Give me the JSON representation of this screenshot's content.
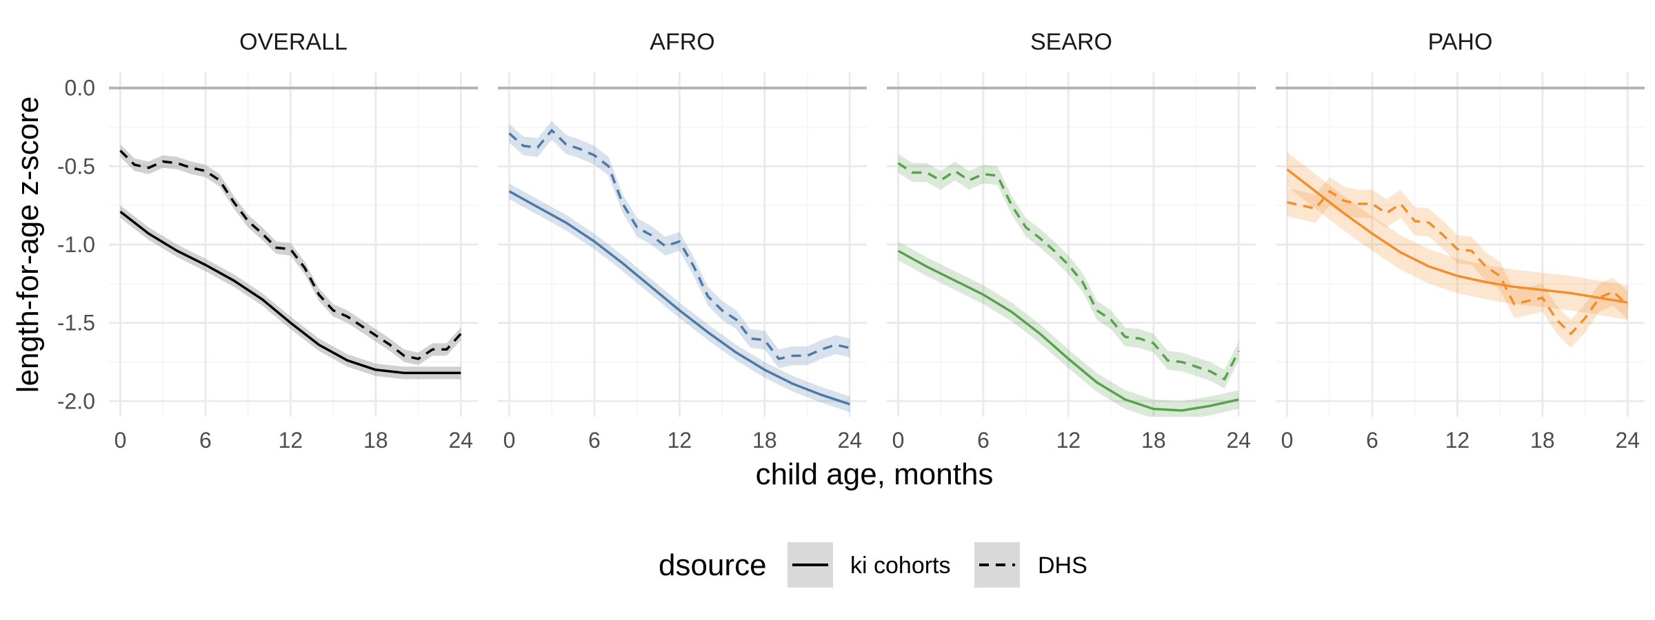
{
  "chart_data": {
    "type": "line",
    "xlabel": "child age, months",
    "ylabel": "length-for-age z-score",
    "xlim": [
      -0.8,
      25.2
    ],
    "ylim": [
      -2.1,
      0.1
    ],
    "x_ticks": [
      0,
      6,
      12,
      18,
      24
    ],
    "y_ticks": [
      0.0,
      -0.5,
      -1.0,
      -1.5,
      -2.0
    ],
    "y_tick_labels": [
      "0.0",
      "-0.5",
      "-1.0",
      "-1.5",
      "-2.0"
    ],
    "reference_line": 0,
    "grid": true,
    "legend": {
      "title": "dsource",
      "position": "bottom",
      "entries": [
        {
          "label": "ki cohorts",
          "linetype": "solid"
        },
        {
          "label": "DHS",
          "linetype": "dashed"
        }
      ]
    },
    "panels": [
      {
        "title": "OVERALL",
        "color": "#000000",
        "band_color": "#999999",
        "series": [
          {
            "name": "ki cohorts",
            "linetype": "solid",
            "x": [
              0,
              2,
              4,
              6,
              8,
              10,
              12,
              14,
              16,
              18,
              20,
              22,
              24
            ],
            "y": [
              -0.79,
              -0.93,
              -1.04,
              -1.13,
              -1.23,
              -1.35,
              -1.5,
              -1.64,
              -1.74,
              -1.8,
              -1.82,
              -1.82,
              -1.82
            ],
            "band": 0.04
          },
          {
            "name": "DHS",
            "linetype": "dashed",
            "x": [
              0,
              1,
              2,
              3,
              4,
              5,
              6,
              7,
              8,
              9,
              10,
              11,
              12,
              13,
              14,
              15,
              16,
              17,
              18,
              19,
              20,
              21,
              22,
              23,
              24
            ],
            "y": [
              -0.4,
              -0.49,
              -0.51,
              -0.47,
              -0.48,
              -0.51,
              -0.53,
              -0.59,
              -0.73,
              -0.85,
              -0.93,
              -1.02,
              -1.03,
              -1.15,
              -1.32,
              -1.42,
              -1.46,
              -1.52,
              -1.58,
              -1.64,
              -1.71,
              -1.73,
              -1.67,
              -1.67,
              -1.57
            ],
            "band": 0.04
          }
        ]
      },
      {
        "title": "AFRO",
        "color": "#4e79a7",
        "band_color": "#4e79a7",
        "series": [
          {
            "name": "ki cohorts",
            "linetype": "solid",
            "x": [
              0,
              2,
              4,
              6,
              8,
              10,
              12,
              14,
              16,
              18,
              20,
              22,
              24
            ],
            "y": [
              -0.66,
              -0.76,
              -0.86,
              -0.98,
              -1.12,
              -1.27,
              -1.42,
              -1.56,
              -1.69,
              -1.8,
              -1.89,
              -1.96,
              -2.02
            ],
            "band": 0.05
          },
          {
            "name": "DHS",
            "linetype": "dashed",
            "x": [
              0,
              1,
              2,
              3,
              4,
              5,
              6,
              7,
              8,
              9,
              10,
              11,
              12,
              13,
              14,
              15,
              16,
              17,
              18,
              19,
              20,
              21,
              22,
              23,
              24
            ],
            "y": [
              -0.29,
              -0.37,
              -0.38,
              -0.27,
              -0.36,
              -0.39,
              -0.43,
              -0.5,
              -0.74,
              -0.89,
              -0.94,
              -1.01,
              -0.98,
              -1.14,
              -1.33,
              -1.42,
              -1.48,
              -1.6,
              -1.61,
              -1.73,
              -1.71,
              -1.71,
              -1.67,
              -1.64,
              -1.66
            ],
            "band": 0.06
          }
        ]
      },
      {
        "title": "SEARO",
        "color": "#59a14f",
        "band_color": "#59a14f",
        "series": [
          {
            "name": "ki cohorts",
            "linetype": "solid",
            "x": [
              0,
              2,
              4,
              6,
              8,
              10,
              12,
              14,
              16,
              18,
              20,
              22,
              24
            ],
            "y": [
              -1.04,
              -1.14,
              -1.23,
              -1.32,
              -1.43,
              -1.57,
              -1.73,
              -1.88,
              -1.99,
              -2.05,
              -2.06,
              -2.03,
              -1.99
            ],
            "band": 0.06
          },
          {
            "name": "DHS",
            "linetype": "dashed",
            "x": [
              0,
              1,
              2,
              3,
              4,
              5,
              6,
              7,
              8,
              9,
              10,
              11,
              12,
              13,
              14,
              15,
              16,
              17,
              18,
              19,
              20,
              21,
              22,
              23,
              24
            ],
            "y": [
              -0.48,
              -0.54,
              -0.54,
              -0.59,
              -0.53,
              -0.59,
              -0.55,
              -0.56,
              -0.75,
              -0.89,
              -0.96,
              -1.04,
              -1.13,
              -1.24,
              -1.42,
              -1.48,
              -1.59,
              -1.6,
              -1.63,
              -1.74,
              -1.75,
              -1.78,
              -1.81,
              -1.86,
              -1.68
            ],
            "band": 0.06
          }
        ]
      },
      {
        "title": "PAHO",
        "color": "#f28e2b",
        "band_color": "#f28e2b",
        "series": [
          {
            "name": "ki cohorts",
            "linetype": "solid",
            "x": [
              0,
              2,
              4,
              6,
              8,
              10,
              12,
              14,
              16,
              18,
              20,
              22,
              24
            ],
            "y": [
              -0.52,
              -0.66,
              -0.8,
              -0.93,
              -1.05,
              -1.14,
              -1.2,
              -1.24,
              -1.27,
              -1.29,
              -1.31,
              -1.34,
              -1.37
            ],
            "band": 0.11
          },
          {
            "name": "DHS",
            "linetype": "dashed",
            "x": [
              0,
              1,
              2,
              3,
              4,
              5,
              6,
              7,
              8,
              9,
              10,
              11,
              12,
              13,
              14,
              15,
              16,
              17,
              18,
              19,
              20,
              21,
              22,
              23,
              24
            ],
            "y": [
              -0.73,
              -0.75,
              -0.77,
              -0.66,
              -0.72,
              -0.74,
              -0.74,
              -0.8,
              -0.74,
              -0.85,
              -0.86,
              -0.94,
              -1.03,
              -1.04,
              -1.14,
              -1.2,
              -1.38,
              -1.36,
              -1.34,
              -1.48,
              -1.57,
              -1.47,
              -1.34,
              -1.3,
              -1.39
            ],
            "band": 0.09
          }
        ]
      }
    ]
  }
}
